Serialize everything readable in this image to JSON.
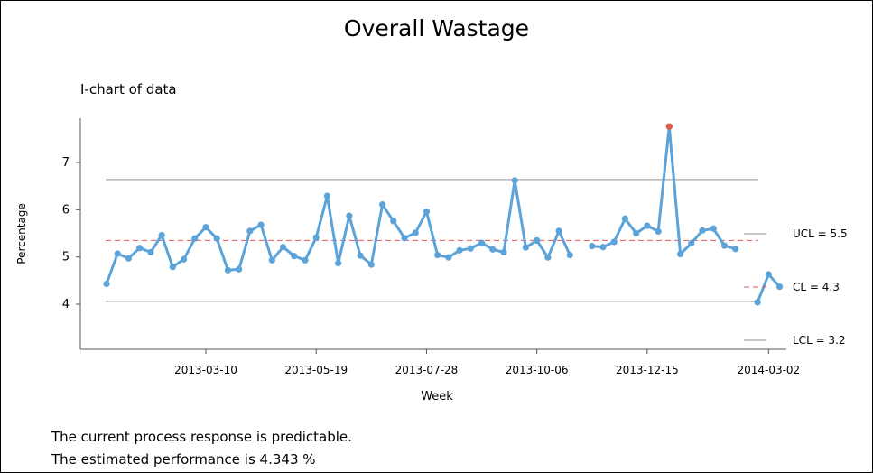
{
  "title": "Overall Wastage",
  "subtitle": "I-chart of data",
  "notes": [
    "The current process response is predictable.",
    "The estimated performance is 4.343 %"
  ],
  "colors": {
    "series": "#5ba3d8",
    "center_line": "#e05a5a",
    "limits": "#a6a6a6",
    "outlier": "#e05a47",
    "axis": "#555555"
  },
  "chart_data": {
    "type": "line",
    "title": "Overall Wastage",
    "subtitle": "I-chart of data",
    "xlabel": "Week",
    "ylabel": "Percentage",
    "ylim": [
      2.9,
      7.95
    ],
    "y_ticks": [
      "4",
      "5",
      "6",
      "7"
    ],
    "x_ticks": [
      "2013-03-10",
      "2013-05-19",
      "2013-07-28",
      "2013-10-06",
      "2013-12-15",
      "2014-03-02"
    ],
    "grid": false,
    "legend": [
      {
        "label": "UCL = 5.5",
        "style": "solid-gray"
      },
      {
        "label": "CL = 4.3",
        "style": "dashed-red"
      },
      {
        "label": "LCL = 3.2",
        "style": "solid-gray"
      }
    ],
    "limits": {
      "ucl_phase1": 6.64,
      "cl_phase1": 5.35,
      "lcl_phase1": 4.06,
      "phase1_end": "2014-01-26"
    },
    "outliers": [
      {
        "x": "2013-12-29",
        "y": 7.76
      }
    ],
    "series": [
      {
        "segments": [
          {
            "x": [
              "2013-01-06",
              "2013-01-13",
              "2013-01-20",
              "2013-01-27",
              "2013-02-03",
              "2013-02-10",
              "2013-02-17",
              "2013-02-24",
              "2013-03-03",
              "2013-03-10",
              "2013-03-17",
              "2013-03-24",
              "2013-03-31",
              "2013-04-07",
              "2013-04-14",
              "2013-04-21",
              "2013-04-28",
              "2013-05-05",
              "2013-05-12",
              "2013-05-19",
              "2013-05-26",
              "2013-06-02",
              "2013-06-09",
              "2013-06-16",
              "2013-06-23",
              "2013-06-30",
              "2013-07-07",
              "2013-07-14",
              "2013-07-21",
              "2013-07-28",
              "2013-08-04",
              "2013-08-11",
              "2013-08-18",
              "2013-08-25",
              "2013-09-01",
              "2013-09-08",
              "2013-09-15",
              "2013-09-22",
              "2013-09-29",
              "2013-10-06",
              "2013-10-13",
              "2013-10-20",
              "2013-10-27"
            ],
            "y": [
              4.43,
              5.07,
              4.97,
              5.19,
              5.1,
              5.46,
              4.79,
              4.95,
              5.39,
              5.63,
              5.39,
              4.72,
              4.74,
              5.55,
              5.68,
              4.93,
              5.21,
              5.02,
              4.93,
              5.41,
              6.29,
              4.87,
              5.87,
              5.03,
              4.84,
              6.11,
              5.76,
              5.4,
              5.51,
              5.96,
              5.04,
              4.99,
              5.14,
              5.18,
              5.3,
              5.16,
              5.1,
              6.62,
              5.2,
              5.35,
              4.99,
              5.55,
              5.04
            ]
          },
          {
            "x": [
              "2013-11-10",
              "2013-11-17",
              "2013-11-24",
              "2013-12-01",
              "2013-12-08",
              "2013-12-15",
              "2013-12-22",
              "2013-12-29",
              "2014-01-05",
              "2014-01-12",
              "2014-01-19",
              "2014-01-26",
              "2014-02-02",
              "2014-02-09"
            ],
            "y": [
              5.23,
              5.21,
              5.32,
              5.81,
              5.5,
              5.66,
              5.54,
              7.76,
              5.06,
              5.29,
              5.56,
              5.6,
              5.24,
              5.17
            ]
          },
          {
            "x": [
              "2014-02-23",
              "2014-03-02",
              "2014-03-09"
            ],
            "y": [
              4.04,
              4.63,
              4.37
            ]
          }
        ]
      }
    ]
  }
}
